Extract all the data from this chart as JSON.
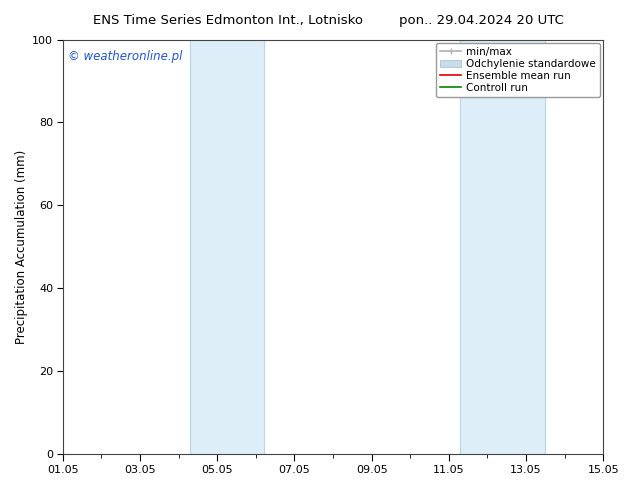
{
  "title_left": "ENS Time Series Edmonton Int., Lotnisko",
  "title_right": "pon.. 29.04.2024 20 UTC",
  "ylabel": "Precipitation Accumulation (mm)",
  "ylim": [
    0,
    100
  ],
  "xlim": [
    0,
    14
  ],
  "xtick_labels": [
    "01.05",
    "03.05",
    "05.05",
    "07.05",
    "09.05",
    "11.05",
    "13.05",
    "15.05"
  ],
  "xtick_positions": [
    0,
    2,
    4,
    6,
    8,
    10,
    12,
    14
  ],
  "ytick_positions": [
    0,
    20,
    40,
    60,
    80,
    100
  ],
  "watermark": "© weatheronline.pl",
  "watermark_color": "#2255cc",
  "shaded_regions": [
    {
      "xmin": 3.3,
      "xmax": 5.2,
      "color": "#ddeef8"
    },
    {
      "xmin": 10.3,
      "xmax": 12.5,
      "color": "#ddeef8"
    }
  ],
  "shade_border_color": "#b8d4e8",
  "legend_entries": [
    {
      "label": "min/max",
      "color": "#b0b0b0",
      "lw": 1.2
    },
    {
      "label": "Odchylenie standardowe",
      "color": "#c8dcea",
      "lw": 7
    },
    {
      "label": "Ensemble mean run",
      "color": "#dd0000",
      "lw": 1.2
    },
    {
      "label": "Controll run",
      "color": "#008800",
      "lw": 1.2
    }
  ],
  "background_color": "#ffffff",
  "plot_bg_color": "#ffffff",
  "border_color": "#555555",
  "title_fontsize": 9.5,
  "axis_label_fontsize": 8.5,
  "tick_fontsize": 8,
  "legend_fontsize": 7.5,
  "watermark_fontsize": 8.5
}
